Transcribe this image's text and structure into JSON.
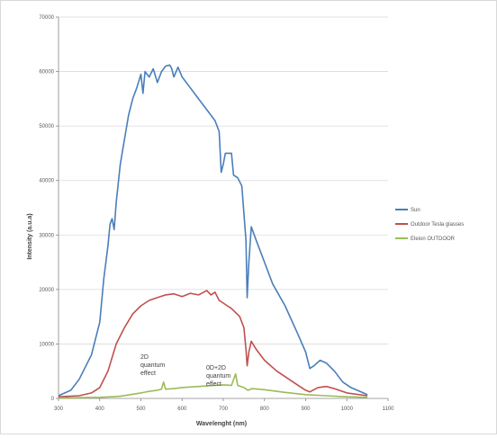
{
  "chart_data": {
    "type": "line",
    "xlabel": "Wavelenght (nm)",
    "ylabel": "Intensity (a.u.a)",
    "xlim": [
      300,
      1100
    ],
    "ylim": [
      0,
      70000
    ],
    "x_ticks": [
      "300",
      "400",
      "500",
      "600",
      "700",
      "800",
      "900",
      "1000",
      "1100"
    ],
    "y_ticks": [
      "0",
      "10000",
      "20000",
      "30000",
      "40000",
      "50000",
      "60000",
      "70000"
    ],
    "grid": "horizontal",
    "legend_position": "right",
    "series": [
      {
        "name": "Sun",
        "color": "#4a7ebb",
        "points": [
          [
            300,
            500
          ],
          [
            330,
            1500
          ],
          [
            350,
            3500
          ],
          [
            380,
            8000
          ],
          [
            400,
            14000
          ],
          [
            410,
            22000
          ],
          [
            420,
            28000
          ],
          [
            425,
            32000
          ],
          [
            430,
            33000
          ],
          [
            435,
            31000
          ],
          [
            440,
            36000
          ],
          [
            450,
            43000
          ],
          [
            470,
            52000
          ],
          [
            480,
            55000
          ],
          [
            490,
            57000
          ],
          [
            500,
            59500
          ],
          [
            505,
            56000
          ],
          [
            510,
            60000
          ],
          [
            520,
            59000
          ],
          [
            530,
            60500
          ],
          [
            540,
            58000
          ],
          [
            550,
            60000
          ],
          [
            560,
            61000
          ],
          [
            570,
            61200
          ],
          [
            575,
            60500
          ],
          [
            580,
            59000
          ],
          [
            590,
            60800
          ],
          [
            600,
            59000
          ],
          [
            620,
            57000
          ],
          [
            640,
            55000
          ],
          [
            660,
            53000
          ],
          [
            680,
            51000
          ],
          [
            690,
            49000
          ],
          [
            695,
            41500
          ],
          [
            700,
            43000
          ],
          [
            705,
            45000
          ],
          [
            720,
            45000
          ],
          [
            725,
            41000
          ],
          [
            735,
            40500
          ],
          [
            745,
            39000
          ],
          [
            750,
            34000
          ],
          [
            755,
            29000
          ],
          [
            758,
            18500
          ],
          [
            762,
            25000
          ],
          [
            768,
            31500
          ],
          [
            780,
            29000
          ],
          [
            800,
            25000
          ],
          [
            820,
            21000
          ],
          [
            850,
            17000
          ],
          [
            880,
            12000
          ],
          [
            900,
            8500
          ],
          [
            910,
            5500
          ],
          [
            920,
            6000
          ],
          [
            935,
            7000
          ],
          [
            950,
            6500
          ],
          [
            970,
            5000
          ],
          [
            990,
            3000
          ],
          [
            1010,
            2000
          ],
          [
            1040,
            1000
          ],
          [
            1050,
            700
          ]
        ]
      },
      {
        "name": "Outdoor Tesla glasses",
        "color": "#c0504d",
        "points": [
          [
            300,
            300
          ],
          [
            350,
            500
          ],
          [
            380,
            1000
          ],
          [
            400,
            2000
          ],
          [
            420,
            5000
          ],
          [
            440,
            10000
          ],
          [
            460,
            13000
          ],
          [
            480,
            15500
          ],
          [
            500,
            17000
          ],
          [
            520,
            18000
          ],
          [
            540,
            18500
          ],
          [
            560,
            19000
          ],
          [
            580,
            19200
          ],
          [
            600,
            18700
          ],
          [
            620,
            19300
          ],
          [
            640,
            19000
          ],
          [
            660,
            19800
          ],
          [
            670,
            19000
          ],
          [
            680,
            19500
          ],
          [
            690,
            18000
          ],
          [
            700,
            17500
          ],
          [
            720,
            16500
          ],
          [
            740,
            15000
          ],
          [
            750,
            13000
          ],
          [
            755,
            9000
          ],
          [
            758,
            6000
          ],
          [
            762,
            8500
          ],
          [
            768,
            10500
          ],
          [
            780,
            9000
          ],
          [
            800,
            7000
          ],
          [
            830,
            5000
          ],
          [
            860,
            3500
          ],
          [
            880,
            2500
          ],
          [
            900,
            1500
          ],
          [
            910,
            1200
          ],
          [
            930,
            2000
          ],
          [
            950,
            2200
          ],
          [
            970,
            1800
          ],
          [
            1000,
            1000
          ],
          [
            1050,
            500
          ]
        ]
      },
      {
        "name": "Eleion OUTDOOR",
        "color": "#9bbb59",
        "points": [
          [
            300,
            100
          ],
          [
            400,
            200
          ],
          [
            450,
            400
          ],
          [
            500,
            1000
          ],
          [
            520,
            1300
          ],
          [
            540,
            1500
          ],
          [
            550,
            1700
          ],
          [
            555,
            3000
          ],
          [
            560,
            1700
          ],
          [
            580,
            1800
          ],
          [
            600,
            2000
          ],
          [
            620,
            2100
          ],
          [
            640,
            2200
          ],
          [
            660,
            2300
          ],
          [
            680,
            2400
          ],
          [
            700,
            2500
          ],
          [
            720,
            2400
          ],
          [
            730,
            4500
          ],
          [
            735,
            2400
          ],
          [
            750,
            2000
          ],
          [
            760,
            1500
          ],
          [
            770,
            1800
          ],
          [
            800,
            1600
          ],
          [
            850,
            1100
          ],
          [
            900,
            700
          ],
          [
            950,
            500
          ],
          [
            1000,
            300
          ],
          [
            1050,
            200
          ]
        ]
      }
    ],
    "annotations": [
      {
        "lines": [
          "2D",
          "quantum",
          "effect"
        ]
      },
      {
        "lines": [
          "0D+2D",
          "quantum",
          "effect"
        ]
      }
    ]
  }
}
